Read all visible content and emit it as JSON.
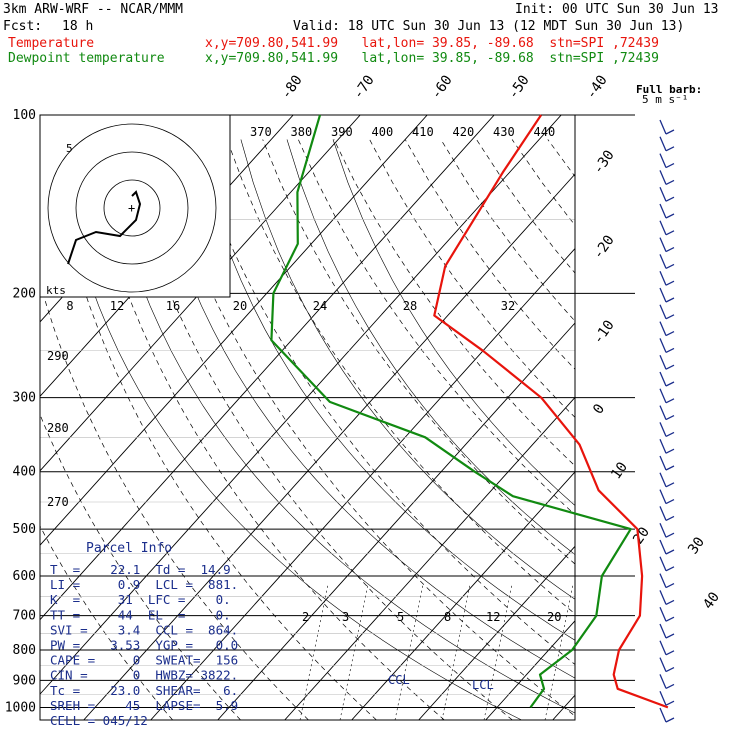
{
  "header": {
    "model": "3km ARW-WRF -- NCAR/MMM",
    "init": "Init: 00 UTC Sun 30 Jun 13",
    "fcst_label": "Fcst:",
    "fcst_value": "18 h",
    "valid": "Valid: 18 UTC Sun 30 Jun 13 (12 MDT Sun 30 Jun 13)",
    "temp_label": "Temperature",
    "temp_info": "x,y=709.80,541.99   lat,lon= 39.85, -89.68  stn=SPI ,72439",
    "dew_label": "Dewpoint temperature",
    "dew_info": "x,y=709.80,541.99   lat,lon= 39.85, -89.68  stn=SPI ,72439"
  },
  "colors": {
    "temperature": "#e8140c",
    "dewpoint": "#118a11",
    "parcel_text": "#1b2e8c",
    "wind_barbs": "#1b2e8c",
    "grid": "#000000"
  },
  "chart_data": {
    "type": "line",
    "pressure_levels": [
      "100",
      "200",
      "300",
      "400",
      "500",
      "600",
      "700",
      "800",
      "900",
      "1000"
    ],
    "isotherm_labels": [
      "-80",
      "-70",
      "-60",
      "-50",
      "-40",
      "-30",
      "-20",
      "-10",
      "0",
      "10",
      "20",
      "30",
      "40"
    ],
    "theta_e_labels": [
      "370",
      "380",
      "390",
      "400",
      "410",
      "420",
      "430",
      "440"
    ],
    "lower_theta_labels": [
      "290",
      "280",
      "270"
    ],
    "mixing_ratio_labels": [
      "2",
      "3",
      "5",
      "8",
      "12",
      "20"
    ],
    "hodograph_speed_labels": [
      "8",
      "12",
      "16",
      "20",
      "24",
      "28",
      "32"
    ],
    "hodograph_units": "kts",
    "hodograph_ring_label": "5",
    "wind_barb_title": "Full barb:",
    "wind_barb_units": "5 m s⁻¹",
    "ccl_label": "CCL",
    "lcl_label": "LCL",
    "series": [
      {
        "name": "Temperature",
        "points": [
          [
            35.5,
            1000
          ],
          [
            25.5,
            930
          ],
          [
            23,
            880
          ],
          [
            20.5,
            800
          ],
          [
            19,
            700
          ],
          [
            14,
            600
          ],
          [
            7,
            500
          ],
          [
            -4,
            430
          ],
          [
            -13,
            360
          ],
          [
            -25,
            300
          ],
          [
            -40,
            250
          ],
          [
            -52,
            218
          ],
          [
            -57,
            180
          ],
          [
            -59,
            150
          ],
          [
            -61,
            125
          ],
          [
            -63,
            100
          ]
        ]
      },
      {
        "name": "Dewpoint temperature",
        "points": [
          [
            15,
            1000
          ],
          [
            14.5,
            930
          ],
          [
            12,
            880
          ],
          [
            13.5,
            800
          ],
          [
            12.5,
            700
          ],
          [
            8,
            600
          ],
          [
            6,
            500
          ],
          [
            -16,
            440
          ],
          [
            -25,
            400
          ],
          [
            -37,
            350
          ],
          [
            -56,
            305
          ],
          [
            -73,
            240
          ],
          [
            -79,
            200
          ],
          [
            -82,
            165
          ],
          [
            -89,
            135
          ],
          [
            -96,
            100
          ]
        ]
      }
    ],
    "hodograph_trace": [
      [
        0,
        -3
      ],
      [
        1,
        -4
      ],
      [
        2,
        -1
      ],
      [
        1,
        3
      ],
      [
        -3,
        7
      ],
      [
        -9,
        6
      ],
      [
        -14,
        8
      ],
      [
        -16,
        14
      ]
    ]
  },
  "parcel_info": {
    "title": "Parcel Info",
    "rows": [
      "T  =    22.1  Td =  14.9",
      "LI =     0.9  LCL =  881.",
      "K  =     31  LFC =    0.",
      "TT =     44  EL  =    0.",
      "SVI =    3.4  CCL =  864.",
      "PW =    3.53  YGP =   0.0",
      "CAPE =     0  SWEAT=  156",
      "CIN =      0  HWBZ= 3822.",
      "Tc =    23.0  SHEAR=   6.",
      "SREH =    45  LAPSE=  5.9",
      "CELL = 045/12"
    ]
  }
}
